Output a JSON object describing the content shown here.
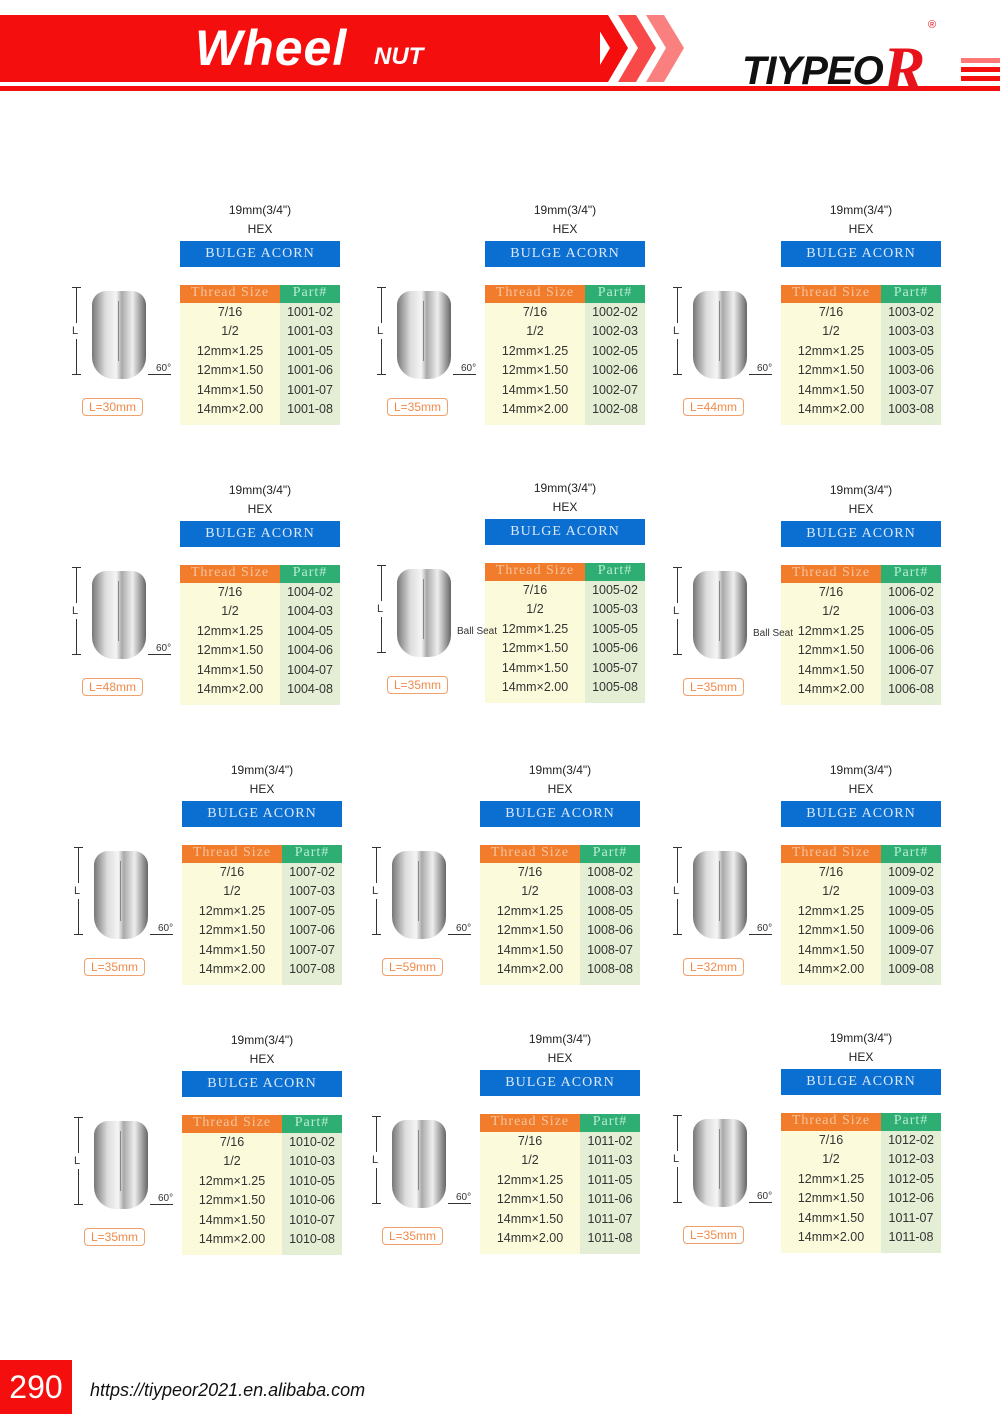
{
  "header": {
    "title": "Wheel",
    "subtitle": "NUT",
    "brand": "TIYPEO",
    "brand_r": "R",
    "registered": "®",
    "accent": "#f50e0e"
  },
  "common": {
    "hex_size": "19mm(3/4\")",
    "hex_label": "HEX",
    "col_thread": "Thread Size",
    "col_part": "Part#",
    "dim_label": "L",
    "angle": "60°",
    "ball_seat": "Ball Seat"
  },
  "threads": [
    "7/16",
    "1/2",
    "12mm×1.25",
    "12mm×1.50",
    "14mm×1.50",
    "14mm×2.00"
  ],
  "products": [
    {
      "type": "BULGE ACORN",
      "length": "L=30mm",
      "seat": "60",
      "parts": [
        "1001-02",
        "1001-03",
        "1001-05",
        "1001-06",
        "1001-07",
        "1001-08"
      ]
    },
    {
      "type": "BULGE ACORN",
      "length": "L=35mm",
      "seat": "60",
      "parts": [
        "1002-02",
        "1002-03",
        "1002-05",
        "1002-06",
        "1002-07",
        "1002-08"
      ]
    },
    {
      "type": "BULGE ACORN",
      "length": "L=44mm",
      "seat": "60",
      "parts": [
        "1003-02",
        "1003-03",
        "1003-05",
        "1003-06",
        "1003-07",
        "1003-08"
      ]
    },
    {
      "type": "BULGE ACORN",
      "length": "L=48mm",
      "seat": "60",
      "parts": [
        "1004-02",
        "1004-03",
        "1004-05",
        "1004-06",
        "1004-07",
        "1004-08"
      ]
    },
    {
      "type": "BULGE ACORN",
      "length": "L=35mm",
      "seat": "ball",
      "parts": [
        "1005-02",
        "1005-03",
        "1005-05",
        "1005-06",
        "1005-07",
        "1005-08"
      ]
    },
    {
      "type": "BULGE ACORN",
      "length": "L=35mm",
      "seat": "ball",
      "parts": [
        "1006-02",
        "1006-03",
        "1006-05",
        "1006-06",
        "1006-07",
        "1006-08"
      ]
    },
    {
      "type": "BULGE ACORN",
      "length": "L=35mm",
      "seat": "60",
      "parts": [
        "1007-02",
        "1007-03",
        "1007-05",
        "1007-06",
        "1007-07",
        "1007-08"
      ]
    },
    {
      "type": "BULGE ACORN",
      "length": "L=59mm",
      "seat": "60",
      "parts": [
        "1008-02",
        "1008-03",
        "1008-05",
        "1008-06",
        "1008-07",
        "1008-08"
      ]
    },
    {
      "type": "BULGE ACORN",
      "length": "L=32mm",
      "seat": "60",
      "parts": [
        "1009-02",
        "1009-03",
        "1009-05",
        "1009-06",
        "1009-07",
        "1009-08"
      ]
    },
    {
      "type": "BULGE ACORN",
      "length": "L=35mm",
      "seat": "60",
      "parts": [
        "1010-02",
        "1010-03",
        "1010-05",
        "1010-06",
        "1010-07",
        "1010-08"
      ]
    },
    {
      "type": "BULGE ACORN",
      "length": "L=35mm",
      "seat": "60",
      "parts": [
        "1011-02",
        "1011-03",
        "1011-05",
        "1011-06",
        "1011-07",
        "1011-08"
      ]
    },
    {
      "type": "BULGE ACORN",
      "length": "L=35mm",
      "seat": "60",
      "parts": [
        "1012-02",
        "1012-03",
        "1012-05",
        "1012-06",
        "1011-07",
        "1011-08"
      ]
    }
  ],
  "footer": {
    "page_number": "290",
    "url": "https://tiypeor2021.en.alibaba.com"
  }
}
